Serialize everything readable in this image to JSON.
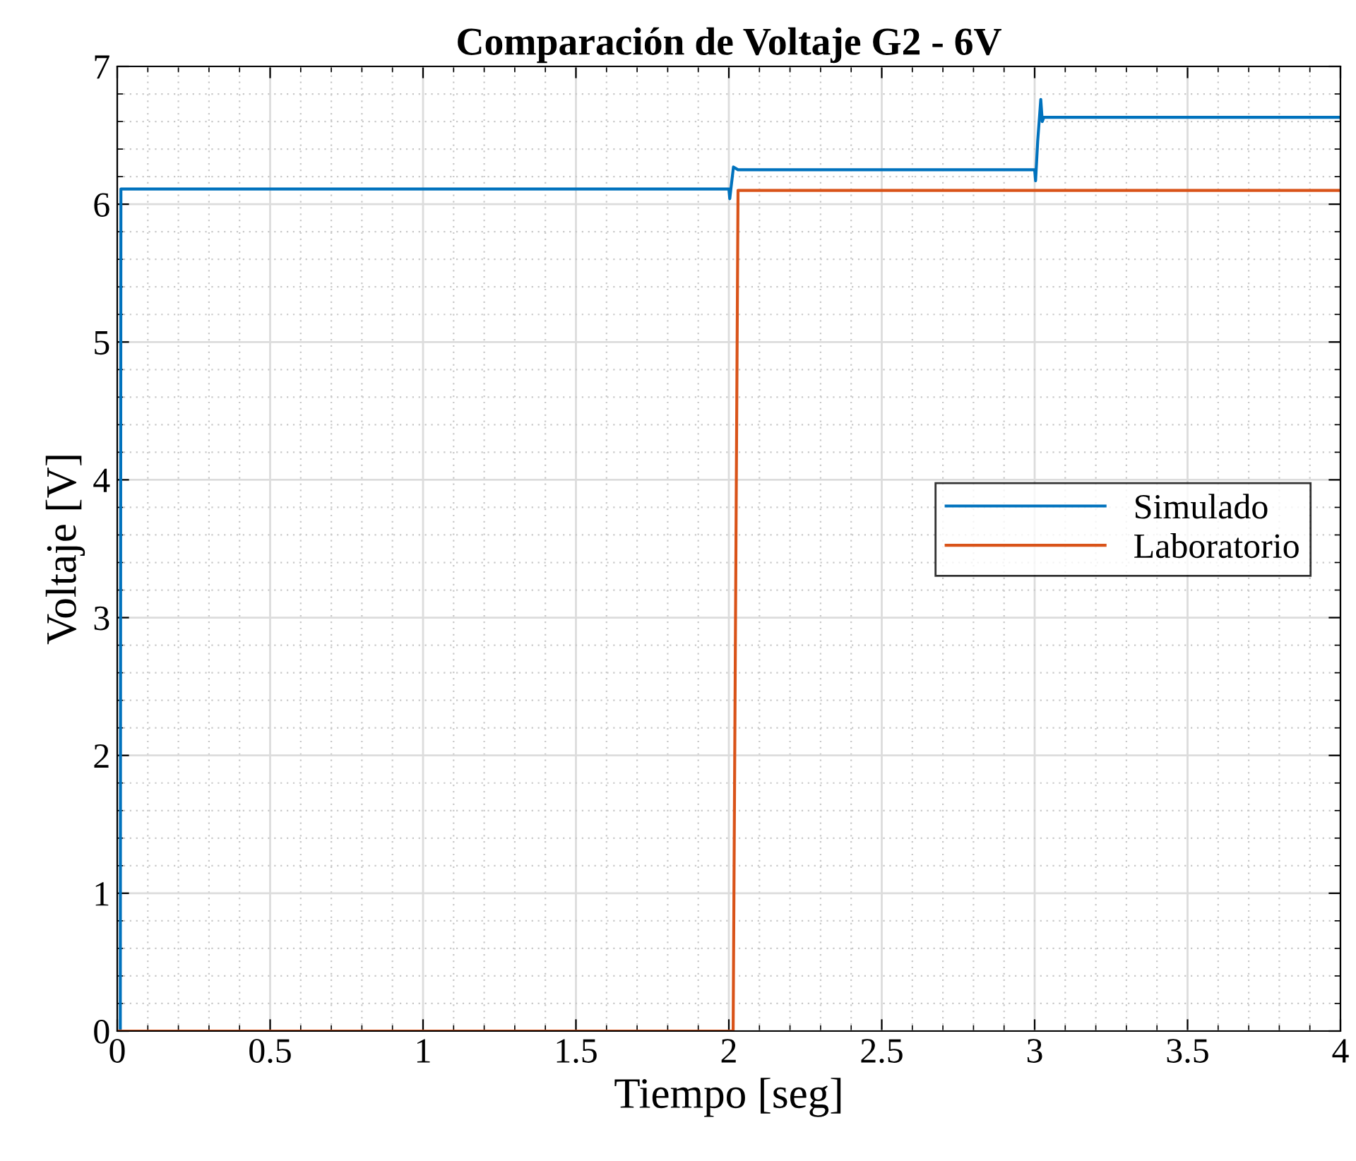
{
  "chart_data": {
    "type": "line",
    "title": "Comparación de Voltaje G2 - 6V",
    "xlabel": "Tiempo [seg]",
    "ylabel": "Voltaje [V]",
    "series": [
      {
        "name": "Simulado",
        "color": "#0072bd",
        "x": [
          0,
          0.01,
          0.012,
          0.5,
          1.0,
          1.5,
          2.0,
          2.003,
          2.015,
          2.03,
          2.5,
          3.0,
          3.003,
          3.01,
          3.02,
          3.025,
          3.03,
          3.5,
          4.0
        ],
        "values": [
          0,
          0,
          6.11,
          6.11,
          6.11,
          6.11,
          6.11,
          6.04,
          6.27,
          6.25,
          6.25,
          6.25,
          6.17,
          6.46,
          6.76,
          6.6,
          6.63,
          6.63,
          6.63
        ]
      },
      {
        "name": "Laboratorio",
        "color": "#d95319",
        "x": [
          0,
          1.0,
          2.014,
          2.03,
          2.5,
          3.0,
          3.5,
          4.0
        ],
        "values": [
          0,
          0,
          0,
          6.1,
          6.1,
          6.1,
          6.1,
          6.1
        ]
      }
    ],
    "xlim": [
      0,
      4
    ],
    "ylim": [
      0,
      7
    ],
    "xticks": [
      0,
      0.5,
      1,
      1.5,
      2,
      2.5,
      3,
      3.5,
      4
    ],
    "yticks": [
      0,
      1,
      2,
      3,
      4,
      5,
      6,
      7
    ],
    "grid": true,
    "legend": "right",
    "marker": "none",
    "line_style": "solid"
  }
}
